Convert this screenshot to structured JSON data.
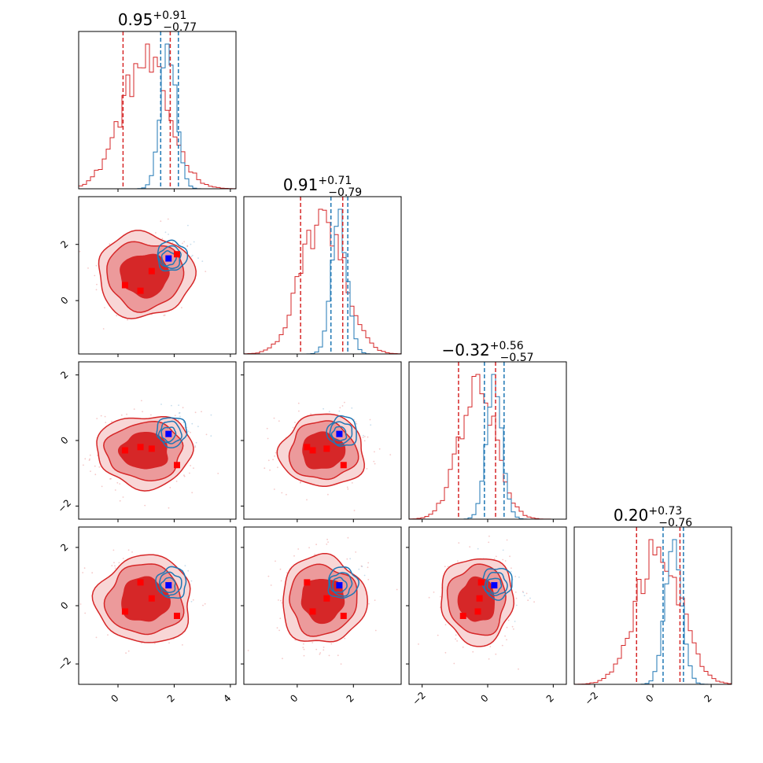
{
  "chart_data": {
    "type": "corner",
    "parameters": 4,
    "colors": {
      "reference": "#d62728",
      "reference_fill_dark": "#d62728",
      "reference_fill_mid": "#ec9a9b",
      "reference_fill_light": "#f8d6d6",
      "posterior": "#1f77b4",
      "true_marker": "#0000ff",
      "sample_marker": "#ff0000"
    },
    "titles": [
      {
        "value": "0.95",
        "plus": "+0.91",
        "minus": "−0.77"
      },
      {
        "value": "0.91",
        "plus": "+0.71",
        "minus": "−0.79"
      },
      {
        "value": "−0.32",
        "plus": "+0.56",
        "minus": "−0.57"
      },
      {
        "value": "0.20",
        "plus": "+0.73",
        "minus": "−0.76"
      }
    ],
    "ranges": [
      [
        -1.4,
        4.2
      ],
      [
        -1.9,
        3.7
      ],
      [
        -2.4,
        2.4
      ],
      [
        -2.7,
        2.7
      ]
    ],
    "x_ticks": [
      [
        {
          "v": 0,
          "label": "0"
        },
        {
          "v": 2,
          "label": "2"
        },
        {
          "v": 4,
          "label": "4"
        }
      ],
      [
        {
          "v": 0,
          "label": "0"
        },
        {
          "v": 2,
          "label": "2"
        }
      ],
      [
        {
          "v": -2,
          "label": "−2"
        },
        {
          "v": 0,
          "label": "0"
        },
        {
          "v": 2,
          "label": "2"
        }
      ],
      [
        {
          "v": -2,
          "label": "−2"
        },
        {
          "v": 0,
          "label": "0"
        },
        {
          "v": 2,
          "label": "2"
        }
      ]
    ],
    "y_ticks": [
      [],
      [
        {
          "v": 0,
          "label": "0"
        },
        {
          "v": 2,
          "label": "2"
        }
      ],
      [
        {
          "v": -2,
          "label": "−2"
        },
        {
          "v": 0,
          "label": "0"
        },
        {
          "v": 2,
          "label": "2"
        }
      ],
      [
        {
          "v": -2,
          "label": "−2"
        },
        {
          "v": 0,
          "label": "0"
        },
        {
          "v": 2,
          "label": "2"
        }
      ]
    ],
    "posterior_mean": [
      1.8,
      1.5,
      0.2,
      0.7
    ],
    "posterior_sd": [
      0.28,
      0.28,
      0.24,
      0.28
    ],
    "reference_mean": [
      0.95,
      0.91,
      -0.32,
      0.2
    ],
    "reference_sd": [
      0.85,
      0.75,
      0.55,
      0.75
    ],
    "reference_quantiles": [
      [
        0.18,
        1.86
      ],
      [
        0.12,
        1.62
      ],
      [
        -0.89,
        0.24
      ],
      [
        -0.56,
        0.93
      ]
    ],
    "posterior_quantiles": [
      [
        1.52,
        2.15
      ],
      [
        1.2,
        1.8
      ],
      [
        -0.1,
        0.5
      ],
      [
        0.35,
        1.05
      ]
    ],
    "sample_points": [
      [
        0.25,
        0.55,
        -0.3,
        -0.2
      ],
      [
        0.8,
        0.35,
        -0.2,
        0.8
      ],
      [
        1.2,
        1.05,
        -0.25,
        0.25
      ],
      [
        2.1,
        1.65,
        -0.75,
        -0.35
      ]
    ],
    "true_point": [
      1.8,
      1.5,
      0.2,
      0.7
    ]
  }
}
